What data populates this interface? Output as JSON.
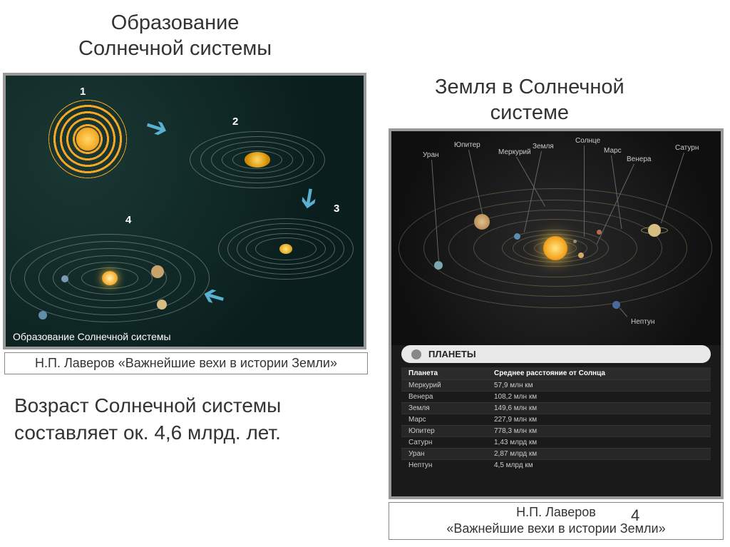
{
  "titles": {
    "left": "Образование\nСолнечной системы",
    "right": "Земля в Солнечной\nсистеме"
  },
  "leftDiagram": {
    "caption": "Образование Солнечной системы",
    "stages": [
      "1",
      "2",
      "3",
      "4"
    ],
    "colors": {
      "bg": "#0e2a28",
      "nebula": "#f5a623",
      "orbit": "rgba(200,200,200,0.45)",
      "arrow": "#5ab0d0"
    }
  },
  "leftCredit": "Н.П. Лаверов «Важнейшие вехи в истории Земли»",
  "ageText": "Возраст Солнечной системы\nсоставляет ок. 4,6 млрд. лет.",
  "rightDiagram": {
    "labels": {
      "sun": "Солнце",
      "mercury": "Меркурий",
      "venus": "Венера",
      "earth": "Земля",
      "mars": "Марс",
      "jupiter": "Юпитер",
      "saturn": "Сатурн",
      "uranus": "Уран",
      "neptune": "Нептун"
    },
    "colors": {
      "sun": "#f5c542",
      "mercury": "#9b8b7a",
      "venus": "#d4a96a",
      "earth": "#5a8bb0",
      "mars": "#b86a4a",
      "jupiter": "#c9a16a",
      "saturn": "#d6bd82",
      "uranus": "#7aa8b0",
      "neptune": "#4a6a9b",
      "orbit": "rgba(180,170,120,0.35)",
      "bg": "#1a1a1a"
    }
  },
  "table": {
    "title": "ПЛАНЕТЫ",
    "headers": {
      "planet": "Планета",
      "distance": "Среднее расстояние от Солнца"
    },
    "rows": [
      {
        "name": "Меркурий",
        "dist": "57,9 млн км"
      },
      {
        "name": "Венера",
        "dist": "108,2 млн км"
      },
      {
        "name": "Земля",
        "dist": "149,6 млн км"
      },
      {
        "name": "Марс",
        "dist": "227,9 млн км"
      },
      {
        "name": "Юпитер",
        "dist": "778,3 млн км"
      },
      {
        "name": "Сатурн",
        "dist": "1,43 млрд км"
      },
      {
        "name": "Уран",
        "dist": "2,87 млрд км"
      },
      {
        "name": "Нептун",
        "dist": "4,5 млрд км"
      }
    ]
  },
  "rightCredit": "Н.П. Лаверов\n«Важнейшие вехи в истории Земли»",
  "pageNumber": "4"
}
